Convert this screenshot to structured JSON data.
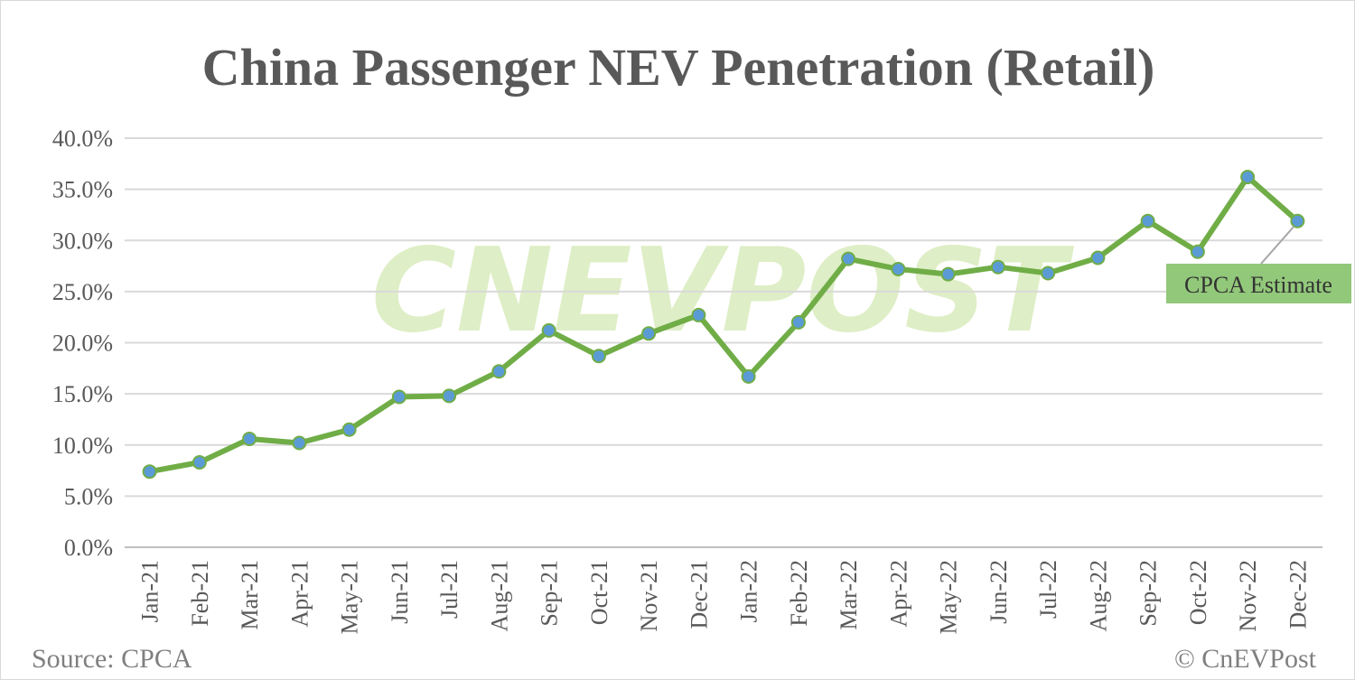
{
  "chart_data": {
    "type": "line",
    "title": "China Passenger NEV Penetration (Retail)",
    "categories": [
      "Jan-21",
      "Feb-21",
      "Mar-21",
      "Apr-21",
      "May-21",
      "Jun-21",
      "Jul-21",
      "Aug-21",
      "Sep-21",
      "Oct-21",
      "Nov-21",
      "Dec-21",
      "Jan-22",
      "Feb-22",
      "Mar-22",
      "Apr-22",
      "May-22",
      "Jun-22",
      "Jul-22",
      "Aug-22",
      "Sep-22",
      "Oct-22",
      "Nov-22",
      "Dec-22"
    ],
    "values": [
      7.4,
      8.3,
      10.6,
      10.2,
      11.5,
      14.7,
      14.8,
      17.2,
      21.2,
      18.7,
      20.9,
      22.7,
      16.7,
      22.0,
      28.2,
      27.2,
      26.7,
      27.4,
      26.8,
      28.3,
      31.9,
      28.9,
      36.2,
      31.9
    ],
    "ylim": [
      0,
      40
    ],
    "yticks": [
      "0.0%",
      "5.0%",
      "10.0%",
      "15.0%",
      "20.0%",
      "25.0%",
      "30.0%",
      "35.0%",
      "40.0%"
    ],
    "grid": true,
    "line_color": "#70ad47",
    "marker_color": "#5b9bd5",
    "annotation": {
      "text": "CPCA Estimate",
      "target": "Dec-22",
      "background": "#92c87a"
    }
  },
  "footer": {
    "source": "Source: CPCA",
    "copyright": "© CnEVPost"
  },
  "watermark": "CNEVPOST"
}
